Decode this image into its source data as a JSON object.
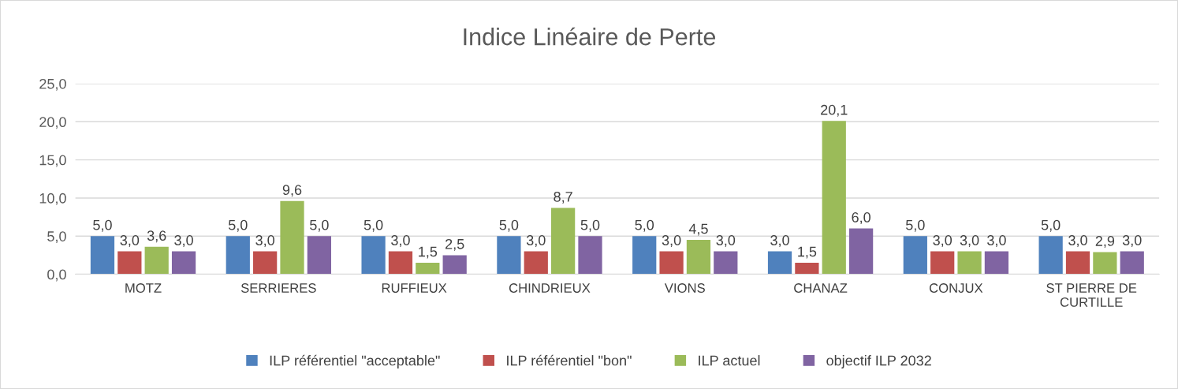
{
  "chart_data": {
    "type": "bar",
    "title": "Indice Linéaire de Perte",
    "categories": [
      "MOTZ",
      "SERRIERES",
      "RUFFIEUX",
      "CHINDRIEUX",
      "VIONS",
      "CHANAZ",
      "CONJUX",
      "ST PIERRE DE\nCURTILLE"
    ],
    "series": [
      {
        "name": "ILP référentiel \"acceptable\"",
        "color": "#4f81bd",
        "values": [
          5.0,
          5.0,
          5.0,
          5.0,
          5.0,
          3.0,
          5.0,
          5.0
        ],
        "value_labels": [
          "5,0",
          "5,0",
          "5,0",
          "5,0",
          "5,0",
          "3,0",
          "5,0",
          "5,0"
        ]
      },
      {
        "name": "ILP référentiel \"bon\"",
        "color": "#c0504d",
        "values": [
          3.0,
          3.0,
          3.0,
          3.0,
          3.0,
          1.5,
          3.0,
          3.0
        ],
        "value_labels": [
          "3,0",
          "3,0",
          "3,0",
          "3,0",
          "3,0",
          "1,5",
          "3,0",
          "3,0"
        ]
      },
      {
        "name": "ILP actuel",
        "color": "#9bbb59",
        "values": [
          3.6,
          9.6,
          1.5,
          8.7,
          4.5,
          20.1,
          3.0,
          2.9
        ],
        "value_labels": [
          "3,6",
          "9,6",
          "1,5",
          "8,7",
          "4,5",
          "20,1",
          "3,0",
          "2,9"
        ]
      },
      {
        "name": "objectif ILP 2032",
        "color": "#8064a2",
        "values": [
          3.0,
          5.0,
          2.5,
          5.0,
          3.0,
          6.0,
          3.0,
          3.0
        ],
        "value_labels": [
          "3,0",
          "5,0",
          "2,5",
          "5,0",
          "3,0",
          "6,0",
          "3,0",
          "3,0"
        ]
      }
    ],
    "ylim": [
      0,
      25
    ],
    "yticks": [
      {
        "value": 0,
        "label": "0,0"
      },
      {
        "value": 5,
        "label": "5,0"
      },
      {
        "value": 10,
        "label": "10,0"
      },
      {
        "value": 15,
        "label": "15,0"
      },
      {
        "value": 20,
        "label": "20,0"
      },
      {
        "value": 25,
        "label": "25,0"
      }
    ],
    "grid": "y",
    "legend": "bottom"
  }
}
